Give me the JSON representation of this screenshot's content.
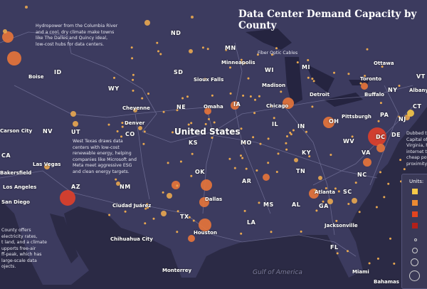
{
  "title": "Data Center Demand Capacity by County",
  "annotations": {
    "pacific_nw": [
      "Hydropower from the Columbia River",
      "and a cool, dry climate make towns",
      "like The Dalles and Quincy ideal,",
      "low-cost hubs for data centers."
    ],
    "west_texas": [
      "West Texas draws data",
      "centers with low-cost",
      "renewable energy, helping",
      "companies like Microsoft and",
      "Meta meet aggressive ESG",
      "and clean energy targets."
    ],
    "arizona": [
      "County offers",
      "electricity rates,",
      "t land, and a climate",
      "upports free-air",
      "ff-peak, which has",
      "large-scale data",
      "ojects."
    ],
    "virginia": [
      "Dubbed th",
      "Capital of",
      "Virginia, h",
      "internet tr",
      "cheap pow",
      "proximity"
    ],
    "fiber": "Fiber Optic Cables"
  },
  "labels": {
    "states": [
      "ND",
      "SD",
      "ID",
      "WY",
      "NE",
      "NV",
      "UT",
      "CO",
      "KS",
      "CA",
      "AZ",
      "NM",
      "OK",
      "TX",
      "MN",
      "WI",
      "IA",
      "MI",
      "IL",
      "IN",
      "MO",
      "OH",
      "PA",
      "NY",
      "KY",
      "WV",
      "VA",
      "NC",
      "TN",
      "AR",
      "MS",
      "AL",
      "GA",
      "SC",
      "LA",
      "FL",
      "DC",
      "DE",
      "NJ",
      "CT",
      "VT"
    ],
    "cities": [
      "Boise",
      "Cheyenne",
      "Denver",
      "Omaha",
      "Sioux Falls",
      "Minneapolis",
      "Madison",
      "Chicago",
      "Detroit",
      "Toronto",
      "Ottawa",
      "Buffalo",
      "Albany",
      "Pittsburgh",
      "Las Vegas",
      "Bakersfield",
      "Los Angeles",
      "San Diego",
      "Ciudad Juárez",
      "Chihuahua City",
      "Dallas",
      "Houston",
      "Monterrey",
      "Atlanta",
      "Jacksonville",
      "Miami",
      "Bahamas",
      "Carson City"
    ],
    "country": "United States",
    "water": "Gulf of America"
  },
  "legend": {
    "title": "Units:",
    "colors": [
      "#f7c948",
      "#ec8a32",
      "#e2441f",
      "#b3201a"
    ],
    "size_steps": 4
  },
  "colors": {
    "land": "#3c3b5f",
    "ocean": "#2b2a45",
    "dot_small": "#e9a850",
    "dot_large": "#e8763a",
    "dot_hot": "#e0402a",
    "roads": "#8e8db5"
  }
}
